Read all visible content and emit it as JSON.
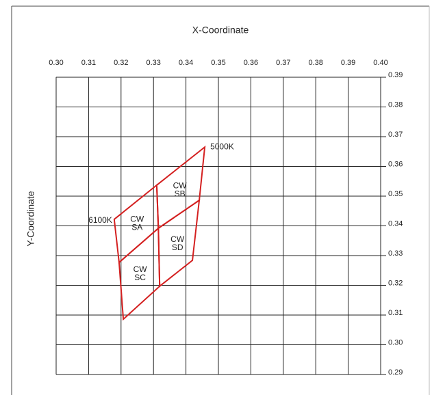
{
  "chart_data": {
    "type": "polygon",
    "title": "X-Coordinate",
    "y_label": "Y-Coordinate",
    "xlim": [
      0.3,
      0.4
    ],
    "ylim": [
      0.29,
      0.39
    ],
    "xticks": [
      {
        "value": 0.3,
        "label": "0.30"
      },
      0.31,
      0.32,
      0.33,
      0.34,
      0.35,
      0.36,
      0.37,
      0.38,
      0.39,
      {
        "value": 0.4,
        "label": "0.40"
      }
    ],
    "yticks": [
      0.29,
      {
        "value": 0.3,
        "label": "0.30"
      },
      0.31,
      0.32,
      0.33,
      0.34,
      0.35,
      0.36,
      0.37,
      0.38,
      0.39
    ],
    "grid": true,
    "color": "#d42020",
    "series": [
      {
        "name": [
          "CW",
          "SA"
        ],
        "x": [
          0.3179,
          0.331,
          0.3315,
          0.3194
        ],
        "y": [
          0.3422,
          0.3537,
          0.3392,
          0.3277
        ]
      },
      {
        "name": [
          "CW",
          "SB"
        ],
        "x": [
          0.331,
          0.3458,
          0.3441,
          0.3315
        ],
        "y": [
          0.3537,
          0.3665,
          0.3486,
          0.3392
        ]
      },
      {
        "name": [
          "CW",
          "SD"
        ],
        "x": [
          0.3315,
          0.3441,
          0.342,
          0.3319
        ],
        "y": [
          0.3392,
          0.3486,
          0.3284,
          0.3197
        ]
      },
      {
        "name": [
          "CW",
          "SC"
        ],
        "x": [
          0.3194,
          0.3315,
          0.3319,
          0.3207
        ],
        "y": [
          0.3277,
          0.3392,
          0.3197,
          0.3086
        ]
      }
    ],
    "annotations": [
      {
        "text": "6100K",
        "x": 0.3179,
        "y": 0.3422
      },
      {
        "text": "5000K",
        "x": 0.3458,
        "y": 0.3665
      }
    ]
  }
}
